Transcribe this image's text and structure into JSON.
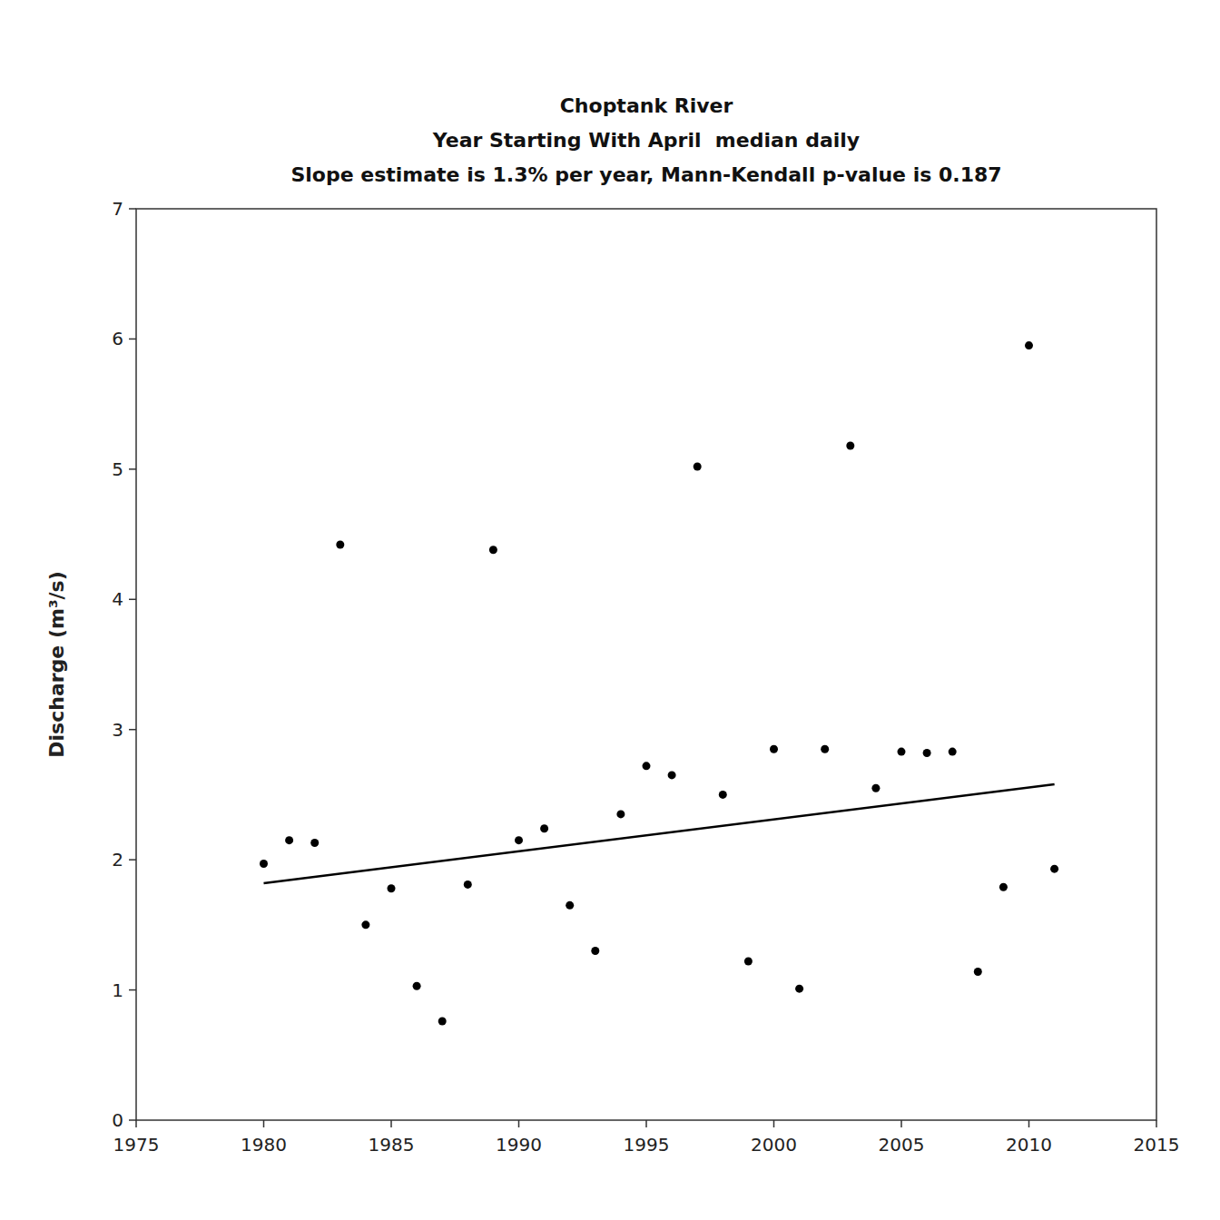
{
  "chart_data": {
    "type": "scatter",
    "title": "Choptank River\nYear Starting With April  median daily\nSlope estimate is 1.3% per year, Mann-Kendall p-value is 0.187",
    "ylabel": "Discharge (m³/s)",
    "xlim": [
      1975,
      2015
    ],
    "ylim": [
      0,
      7
    ],
    "xticks": [
      1975,
      1980,
      1985,
      1990,
      1995,
      2000,
      2005,
      2010,
      2015
    ],
    "yticks": [
      0,
      1,
      2,
      3,
      4,
      5,
      6,
      7
    ],
    "grid": false,
    "series": [
      {
        "type": "scatter",
        "color": "#000000",
        "x": [
          1980,
          1981,
          1982,
          1983,
          1984,
          1985,
          1986,
          1987,
          1988,
          1989,
          1990,
          1991,
          1992,
          1993,
          1994,
          1995,
          1996,
          1997,
          1998,
          1999,
          2000,
          2001,
          2002,
          2003,
          2004,
          2005,
          2006,
          2007,
          2008,
          2009,
          2010,
          2011
        ],
        "values": [
          1.97,
          2.15,
          2.13,
          4.42,
          1.5,
          1.78,
          1.03,
          0.76,
          1.81,
          4.38,
          2.15,
          2.24,
          1.65,
          1.3,
          2.35,
          2.72,
          2.65,
          5.02,
          2.5,
          1.22,
          2.85,
          1.01,
          2.85,
          5.18,
          2.55,
          2.83,
          2.82,
          2.83,
          1.14,
          1.79,
          5.95,
          1.93
        ]
      },
      {
        "type": "line",
        "color": "#000000",
        "x": [
          1980,
          2011
        ],
        "values": [
          1.82,
          2.58
        ]
      }
    ]
  }
}
